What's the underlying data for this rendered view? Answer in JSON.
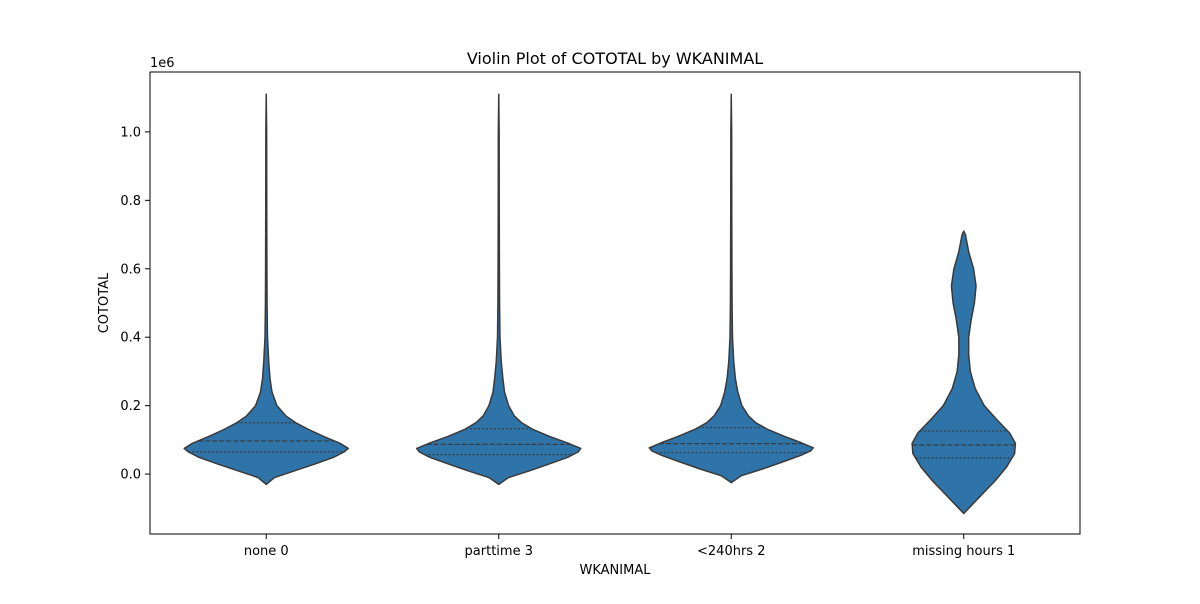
{
  "chart_data": {
    "type": "violin",
    "title": "Violin Plot of COTOTAL by WKANIMAL",
    "xlabel": "WKANIMAL",
    "ylabel": "COTOTAL",
    "y_offset_label": "1e6",
    "y_scale": 1000000,
    "ylim": [
      -175000,
      1175000
    ],
    "yticks": [
      0,
      200000,
      400000,
      600000,
      800000,
      1000000
    ],
    "ytick_labels": [
      "0.0",
      "0.2",
      "0.4",
      "0.6",
      "0.8",
      "1.0"
    ],
    "grid": false,
    "inner": "quartile",
    "color": "#2f74a9",
    "categories": [
      "none 0",
      "parttime 3",
      "<240hrs 2",
      "missing hours 1"
    ],
    "violins": [
      {
        "category": "none 0",
        "min": -30000,
        "max": 1110000,
        "q1": 65000,
        "median": 97000,
        "q3": 150000,
        "profile": [
          [
            -30000,
            0.0
          ],
          [
            -10000,
            0.1
          ],
          [
            10000,
            0.35
          ],
          [
            30000,
            0.6
          ],
          [
            50000,
            0.83
          ],
          [
            65000,
            0.95
          ],
          [
            75000,
            1.0
          ],
          [
            90000,
            0.9
          ],
          [
            110000,
            0.7
          ],
          [
            130000,
            0.52
          ],
          [
            150000,
            0.36
          ],
          [
            170000,
            0.24
          ],
          [
            200000,
            0.13
          ],
          [
            240000,
            0.07
          ],
          [
            280000,
            0.045
          ],
          [
            330000,
            0.03
          ],
          [
            400000,
            0.015
          ],
          [
            500000,
            0.01
          ],
          [
            600000,
            0.008
          ],
          [
            800000,
            0.006
          ],
          [
            1000000,
            0.005
          ],
          [
            1110000,
            0.0
          ]
        ]
      },
      {
        "category": "parttime 3",
        "min": -30000,
        "max": 1110000,
        "q1": 57000,
        "median": 87000,
        "q3": 133000,
        "profile": [
          [
            -30000,
            0.0
          ],
          [
            -10000,
            0.12
          ],
          [
            10000,
            0.38
          ],
          [
            30000,
            0.62
          ],
          [
            50000,
            0.85
          ],
          [
            65000,
            0.97
          ],
          [
            75000,
            1.0
          ],
          [
            90000,
            0.85
          ],
          [
            110000,
            0.62
          ],
          [
            130000,
            0.42
          ],
          [
            150000,
            0.28
          ],
          [
            170000,
            0.19
          ],
          [
            200000,
            0.12
          ],
          [
            240000,
            0.07
          ],
          [
            280000,
            0.05
          ],
          [
            330000,
            0.03
          ],
          [
            400000,
            0.015
          ],
          [
            500000,
            0.01
          ],
          [
            600000,
            0.008
          ],
          [
            800000,
            0.006
          ],
          [
            1000000,
            0.005
          ],
          [
            1110000,
            0.0
          ]
        ]
      },
      {
        "category": "<240hrs 2",
        "min": -25000,
        "max": 1110000,
        "q1": 63000,
        "median": 89000,
        "q3": 136000,
        "profile": [
          [
            -25000,
            0.0
          ],
          [
            -5000,
            0.12
          ],
          [
            15000,
            0.38
          ],
          [
            35000,
            0.62
          ],
          [
            55000,
            0.85
          ],
          [
            68000,
            0.97
          ],
          [
            77000,
            1.0
          ],
          [
            92000,
            0.85
          ],
          [
            110000,
            0.65
          ],
          [
            130000,
            0.45
          ],
          [
            150000,
            0.3
          ],
          [
            170000,
            0.21
          ],
          [
            200000,
            0.13
          ],
          [
            240000,
            0.08
          ],
          [
            280000,
            0.05
          ],
          [
            330000,
            0.03
          ],
          [
            400000,
            0.015
          ],
          [
            500000,
            0.01
          ],
          [
            600000,
            0.008
          ],
          [
            800000,
            0.006
          ],
          [
            1000000,
            0.005
          ],
          [
            1110000,
            0.0
          ]
        ]
      },
      {
        "category": "missing hours 1",
        "min": -115000,
        "max": 710000,
        "q1": 47000,
        "median": 85000,
        "q3": 126000,
        "profile": [
          [
            -115000,
            0.0
          ],
          [
            -100000,
            0.06
          ],
          [
            -60000,
            0.22
          ],
          [
            -20000,
            0.38
          ],
          [
            20000,
            0.52
          ],
          [
            60000,
            0.62
          ],
          [
            90000,
            0.63
          ],
          [
            120000,
            0.56
          ],
          [
            160000,
            0.4
          ],
          [
            200000,
            0.25
          ],
          [
            250000,
            0.14
          ],
          [
            300000,
            0.08
          ],
          [
            350000,
            0.06
          ],
          [
            400000,
            0.06
          ],
          [
            450000,
            0.09
          ],
          [
            500000,
            0.13
          ],
          [
            550000,
            0.15
          ],
          [
            600000,
            0.12
          ],
          [
            650000,
            0.06
          ],
          [
            700000,
            0.02
          ],
          [
            710000,
            0.0
          ]
        ]
      }
    ]
  }
}
